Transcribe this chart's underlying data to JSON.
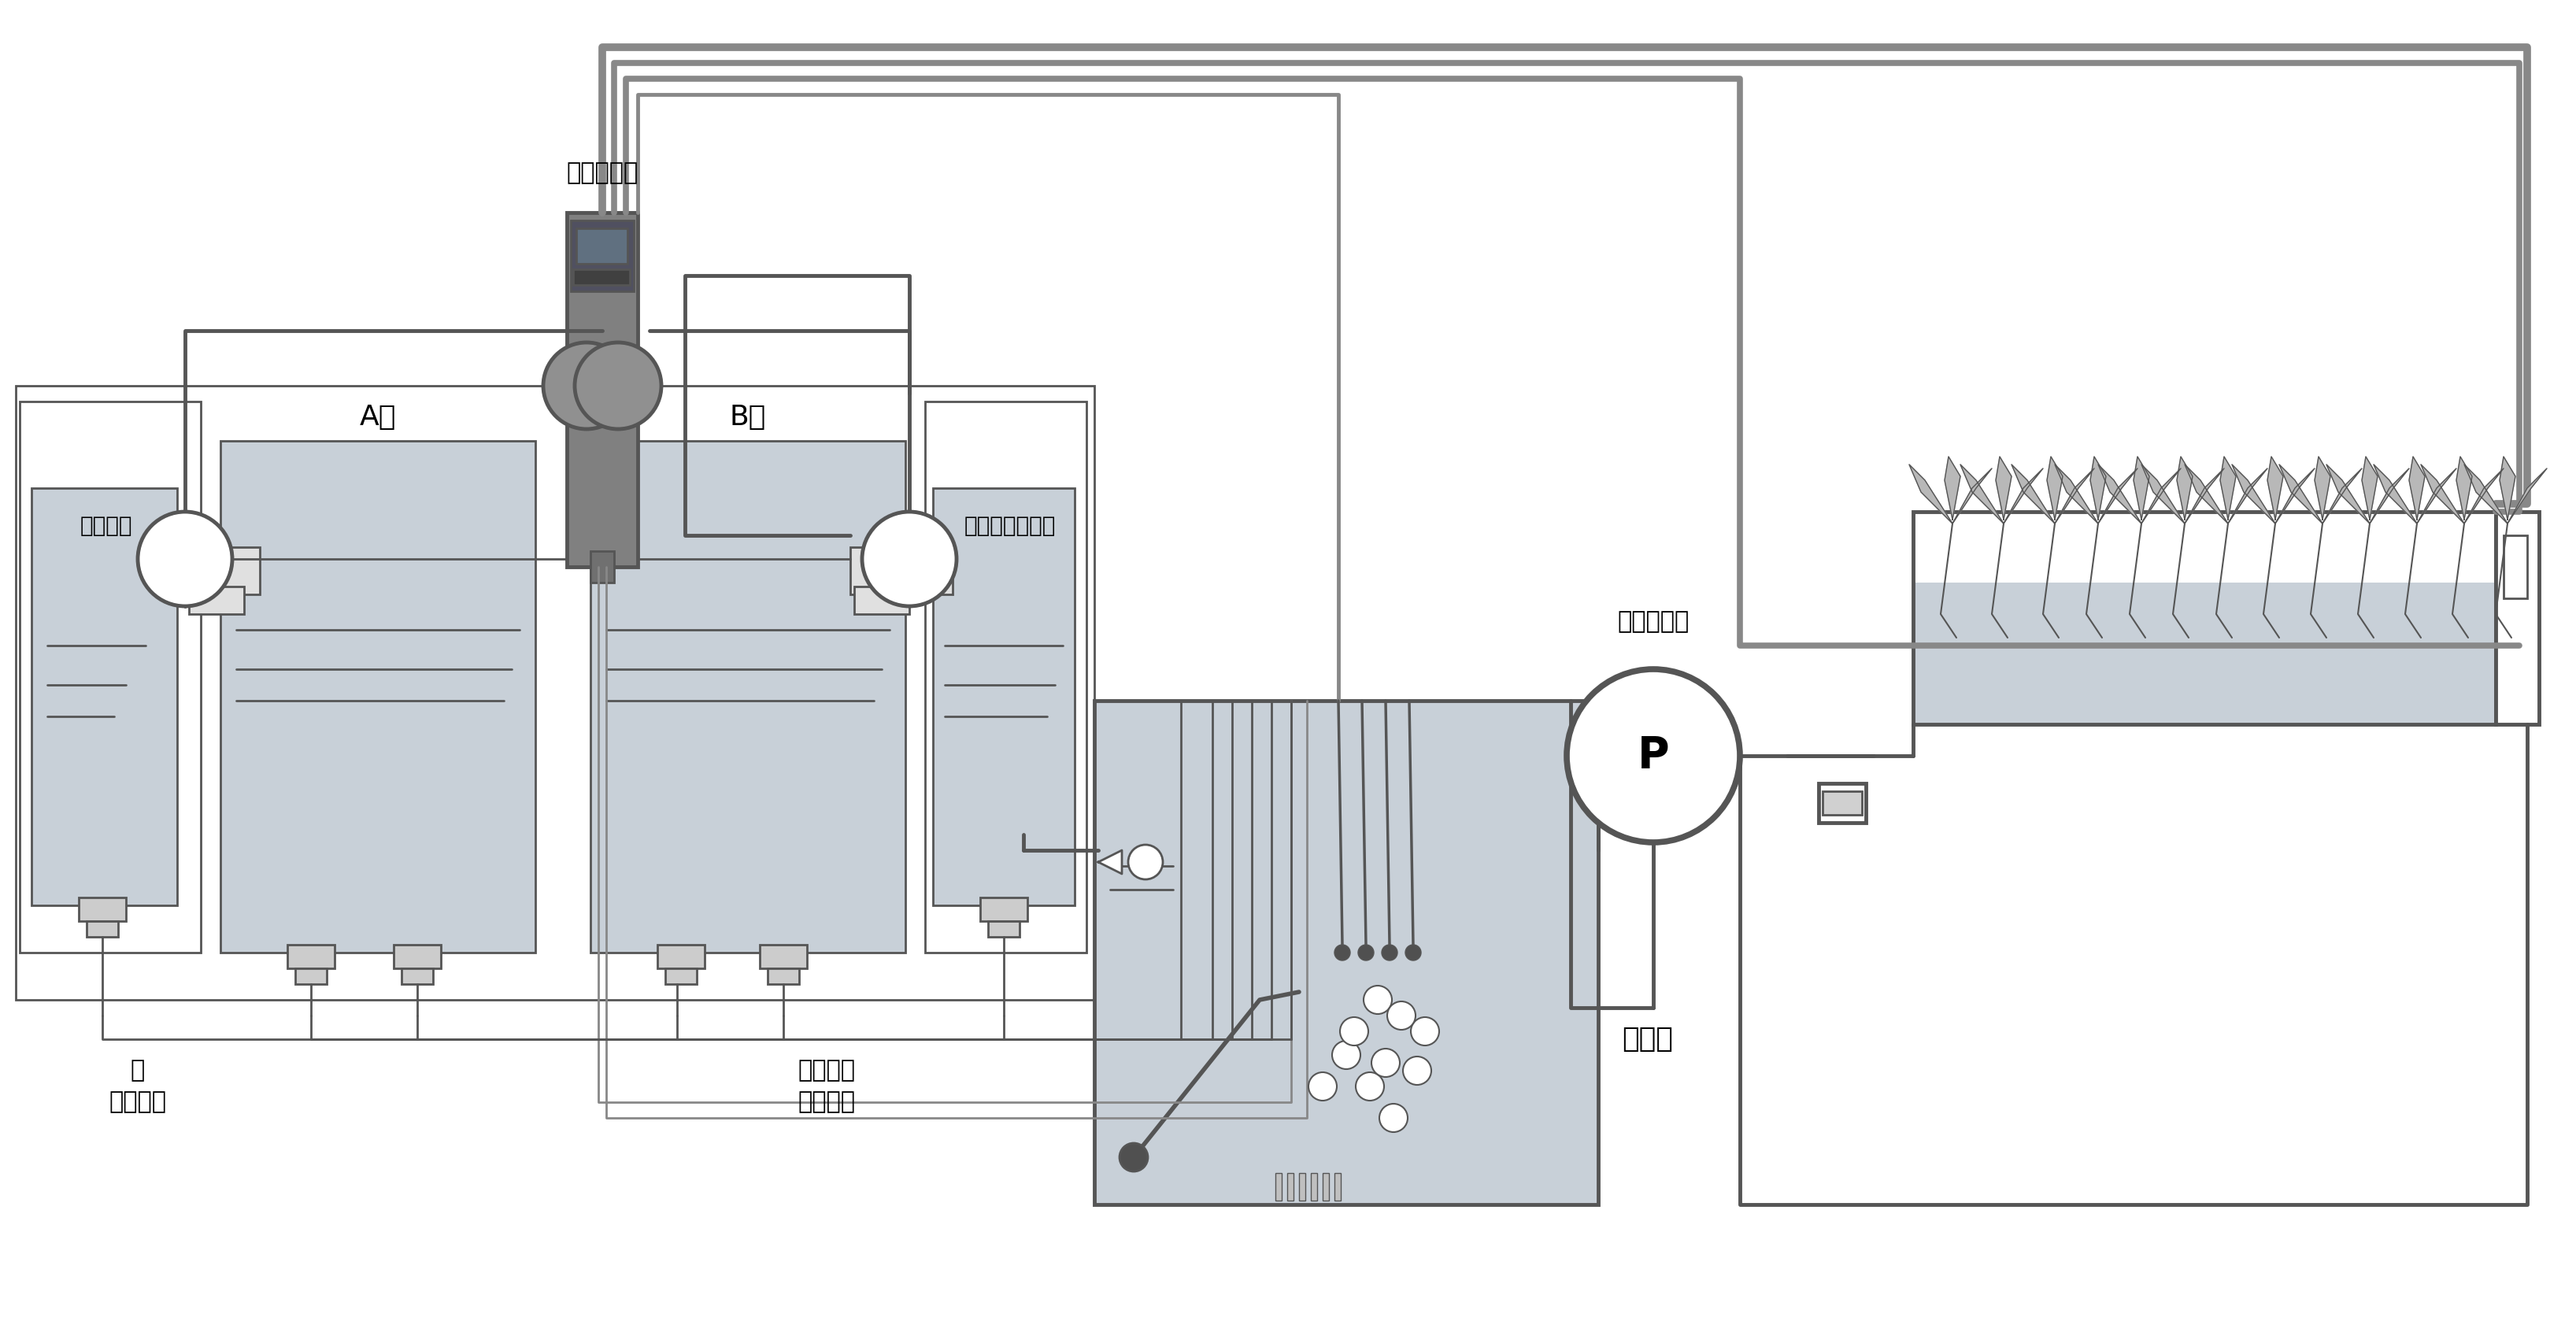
{
  "bg_color": "#ffffff",
  "line_color": "#888888",
  "dark_line": "#555555",
  "med_gray": "#888888",
  "light_gray": "#b8b8b8",
  "tank_fill": "#c8d0d8",
  "device_fill": "#909090",
  "device_body": "#a0a4a8",
  "labels": {
    "hiryou": "肥料管理機",
    "san_pump": "酸ポンプ",
    "alkali_pump": "アルカリポンプ",
    "A_liquid": "A液",
    "B_liquid": "B液",
    "san_down_1": "酸",
    "san_down_2": "ダウン剤",
    "alkali_up_1": "アルカリ",
    "alkali_up_2": "アップ剤",
    "circulation": "循環ポンプ",
    "dilution": "希釈槽",
    "P": "P"
  },
  "figsize": [
    32.73,
    16.97
  ]
}
